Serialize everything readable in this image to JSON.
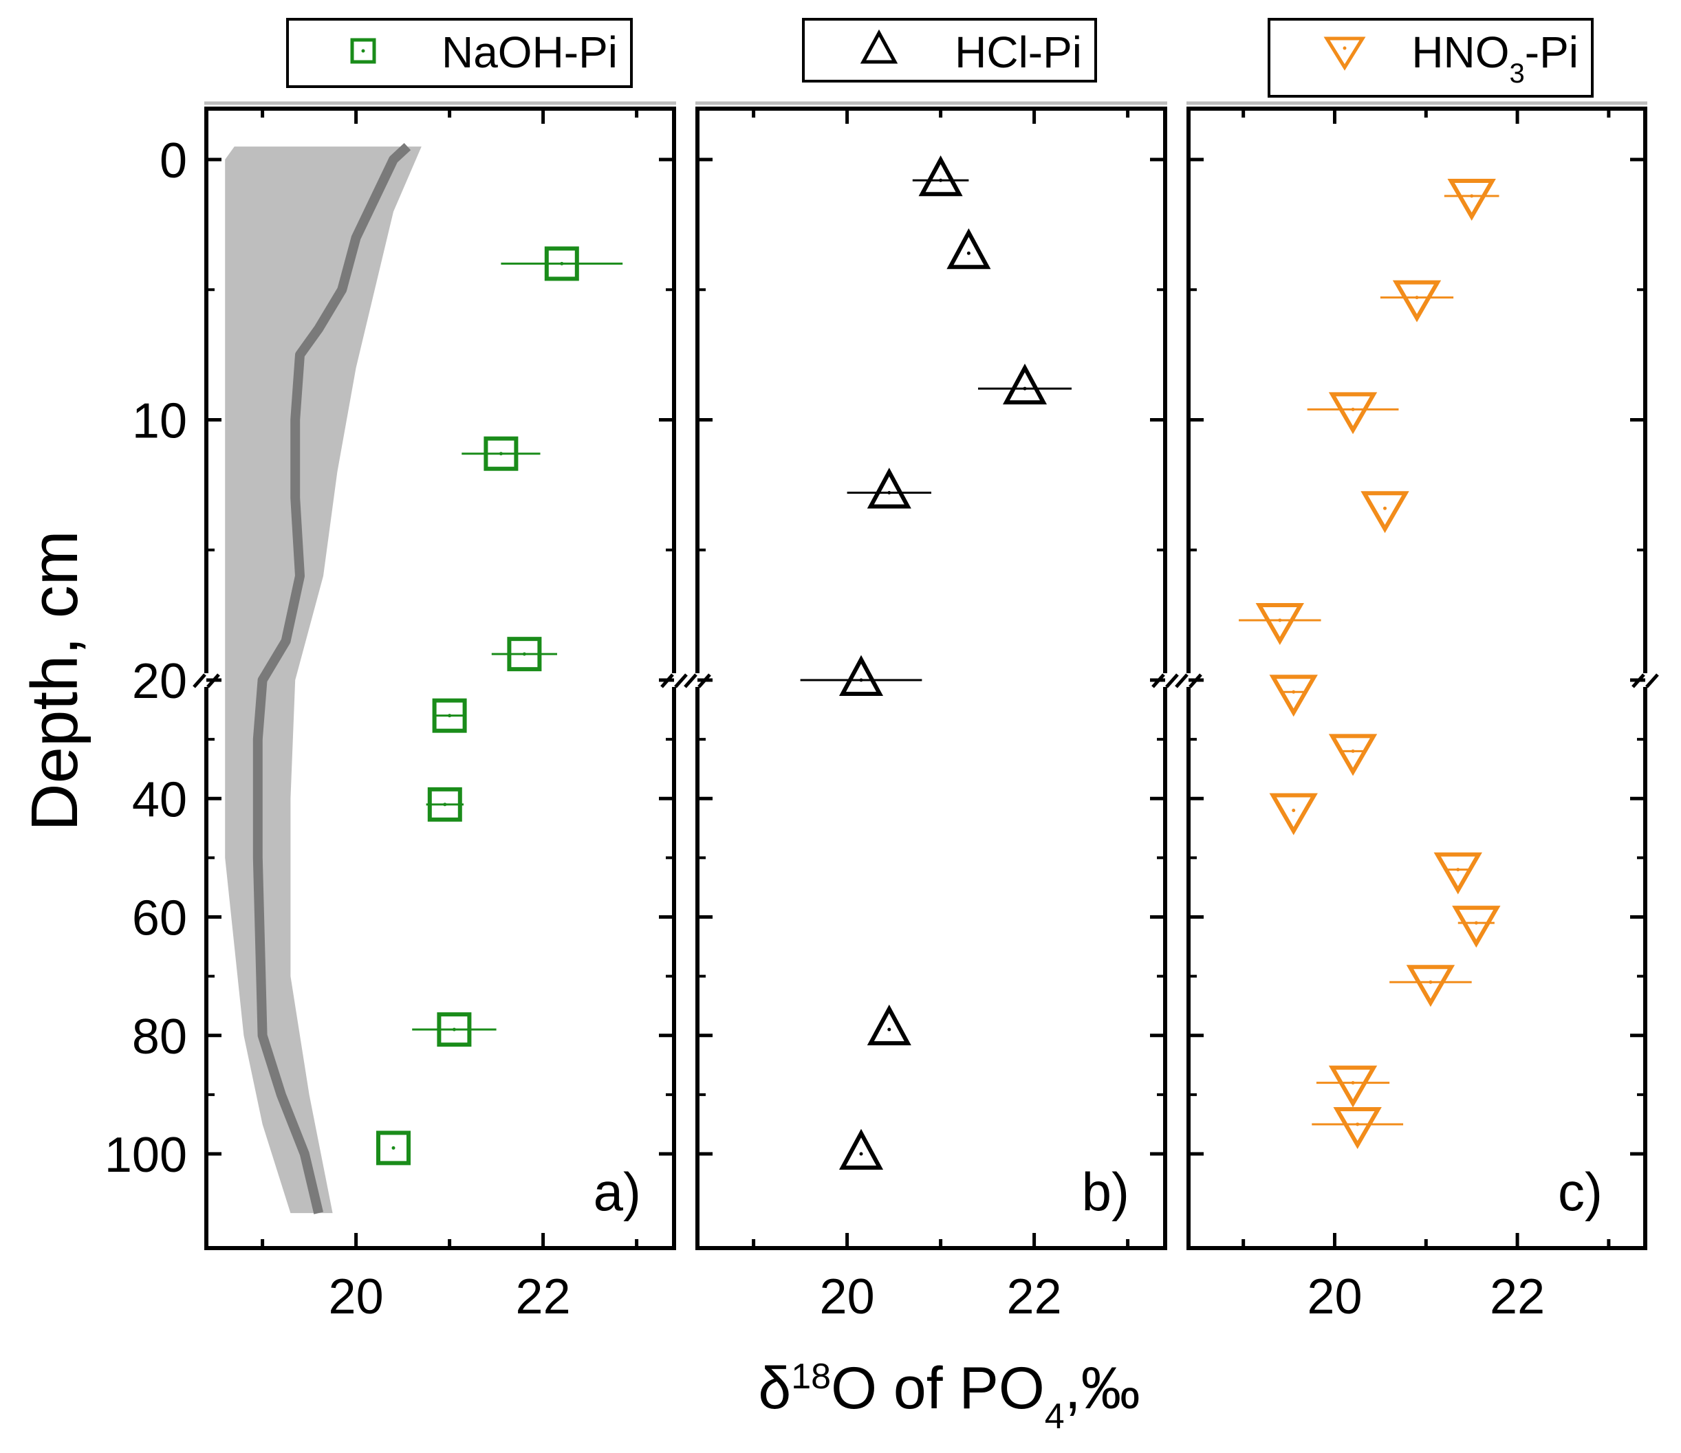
{
  "chart_data": {
    "type": "scatter",
    "shared_y": {
      "label": "Depth, cm",
      "ticks": [
        {
          "value": 0,
          "label": "0"
        },
        {
          "value": 10,
          "label": "10"
        },
        {
          "value": 20,
          "label": "20"
        },
        {
          "value": 40,
          "label": "40"
        },
        {
          "value": 60,
          "label": "60"
        },
        {
          "value": 80,
          "label": "80"
        },
        {
          "value": 100,
          "label": "100"
        }
      ],
      "axis_break_at": 20,
      "inverted": true,
      "scale_note": "piecewise: 0–20 cm expanded, 20–110 cm compressed"
    },
    "shared_x": {
      "label_main": "δ",
      "label_sup": "18",
      "label_after_sup": "O of PO",
      "label_sub": "4",
      "label_tail": ",‰",
      "xlim": [
        18.4,
        23.4
      ],
      "tick_labels": [
        "20",
        "22"
      ],
      "tick_values": [
        20,
        22
      ]
    },
    "panels": [
      {
        "id": "a",
        "panel_label": "a)",
        "legend": {
          "marker": "square",
          "name": "NaOH-Pi"
        },
        "color": "#1a8c1a",
        "points": [
          {
            "depth": 4,
            "value": 22.2,
            "err": 0.65
          },
          {
            "depth": 11.3,
            "value": 21.55,
            "err": 0.42
          },
          {
            "depth": 19.0,
            "value": 21.8,
            "err": 0.35
          },
          {
            "depth": 26,
            "value": 21.0,
            "err": 0.15
          },
          {
            "depth": 41,
            "value": 20.95,
            "err": 0.2
          },
          {
            "depth": 79,
            "value": 21.05,
            "err": 0.45
          },
          {
            "depth": 99,
            "value": 20.4,
            "err": 0
          }
        ],
        "band": {
          "color": "#bebebe",
          "line_color": "#7a7a7a",
          "line": [
            {
              "depth": -0.5,
              "value": 20.55
            },
            {
              "depth": 0,
              "value": 20.4
            },
            {
              "depth": 1.5,
              "value": 20.2
            },
            {
              "depth": 3,
              "value": 20.0
            },
            {
              "depth": 5,
              "value": 19.85
            },
            {
              "depth": 6.5,
              "value": 19.6
            },
            {
              "depth": 7.5,
              "value": 19.4
            },
            {
              "depth": 10,
              "value": 19.35
            },
            {
              "depth": 13,
              "value": 19.35
            },
            {
              "depth": 16,
              "value": 19.4
            },
            {
              "depth": 18.5,
              "value": 19.25
            },
            {
              "depth": 20,
              "value": 19.0
            },
            {
              "depth": 30,
              "value": 18.95
            },
            {
              "depth": 50,
              "value": 18.95
            },
            {
              "depth": 80,
              "value": 19.0
            },
            {
              "depth": 90,
              "value": 19.2
            },
            {
              "depth": 100,
              "value": 19.45
            },
            {
              "depth": 110,
              "value": 19.6
            }
          ],
          "upper": [
            {
              "depth": -0.5,
              "value": 20.7
            },
            {
              "depth": 2,
              "value": 20.4
            },
            {
              "depth": 5,
              "value": 20.2
            },
            {
              "depth": 8,
              "value": 20.0
            },
            {
              "depth": 12,
              "value": 19.8
            },
            {
              "depth": 16,
              "value": 19.65
            },
            {
              "depth": 20,
              "value": 19.35
            },
            {
              "depth": 40,
              "value": 19.3
            },
            {
              "depth": 70,
              "value": 19.3
            },
            {
              "depth": 90,
              "value": 19.5
            },
            {
              "depth": 110,
              "value": 19.75
            }
          ],
          "lower": [
            {
              "depth": 110,
              "value": 19.3
            },
            {
              "depth": 95,
              "value": 19.0
            },
            {
              "depth": 80,
              "value": 18.8
            },
            {
              "depth": 50,
              "value": 18.6
            },
            {
              "depth": 20,
              "value": 18.6
            },
            {
              "depth": 10,
              "value": 18.6
            },
            {
              "depth": 0,
              "value": 18.6
            },
            {
              "depth": -0.5,
              "value": 18.7
            }
          ]
        }
      },
      {
        "id": "b",
        "panel_label": "b)",
        "legend": {
          "marker": "triangle-up",
          "name": "HCl-Pi"
        },
        "color": "#000000",
        "points": [
          {
            "depth": 0.8,
            "value": 21.0,
            "err": 0.3
          },
          {
            "depth": 3.6,
            "value": 21.3,
            "err": 0
          },
          {
            "depth": 8.8,
            "value": 21.9,
            "err": 0.5
          },
          {
            "depth": 12.8,
            "value": 20.45,
            "err": 0.45
          },
          {
            "depth": 20,
            "value": 20.15,
            "err": 0.65
          },
          {
            "depth": 79,
            "value": 20.45,
            "err": 0
          },
          {
            "depth": 100,
            "value": 20.15,
            "err": 0
          }
        ]
      },
      {
        "id": "c",
        "panel_label": "c)",
        "legend": {
          "marker": "triangle-down",
          "name_main": "HNO",
          "name_sub": "3",
          "name_tail": "-Pi"
        },
        "color": "#f28c1a",
        "points": [
          {
            "depth": 1.4,
            "value": 21.5,
            "err": 0.3
          },
          {
            "depth": 5.3,
            "value": 20.9,
            "err": 0.4
          },
          {
            "depth": 9.6,
            "value": 20.2,
            "err": 0.5
          },
          {
            "depth": 13.4,
            "value": 20.55,
            "err": 0
          },
          {
            "depth": 17.7,
            "value": 19.4,
            "err": 0.45
          },
          {
            "depth": 22,
            "value": 19.55,
            "err": 0.15
          },
          {
            "depth": 32,
            "value": 20.2,
            "err": 0.15
          },
          {
            "depth": 42,
            "value": 19.55,
            "err": 0
          },
          {
            "depth": 52,
            "value": 21.35,
            "err": 0.15
          },
          {
            "depth": 61,
            "value": 21.55,
            "err": 0.2
          },
          {
            "depth": 71,
            "value": 21.05,
            "err": 0.45
          },
          {
            "depth": 88,
            "value": 20.2,
            "err": 0.4
          },
          {
            "depth": 95,
            "value": 20.25,
            "err": 0.5
          }
        ]
      }
    ]
  }
}
